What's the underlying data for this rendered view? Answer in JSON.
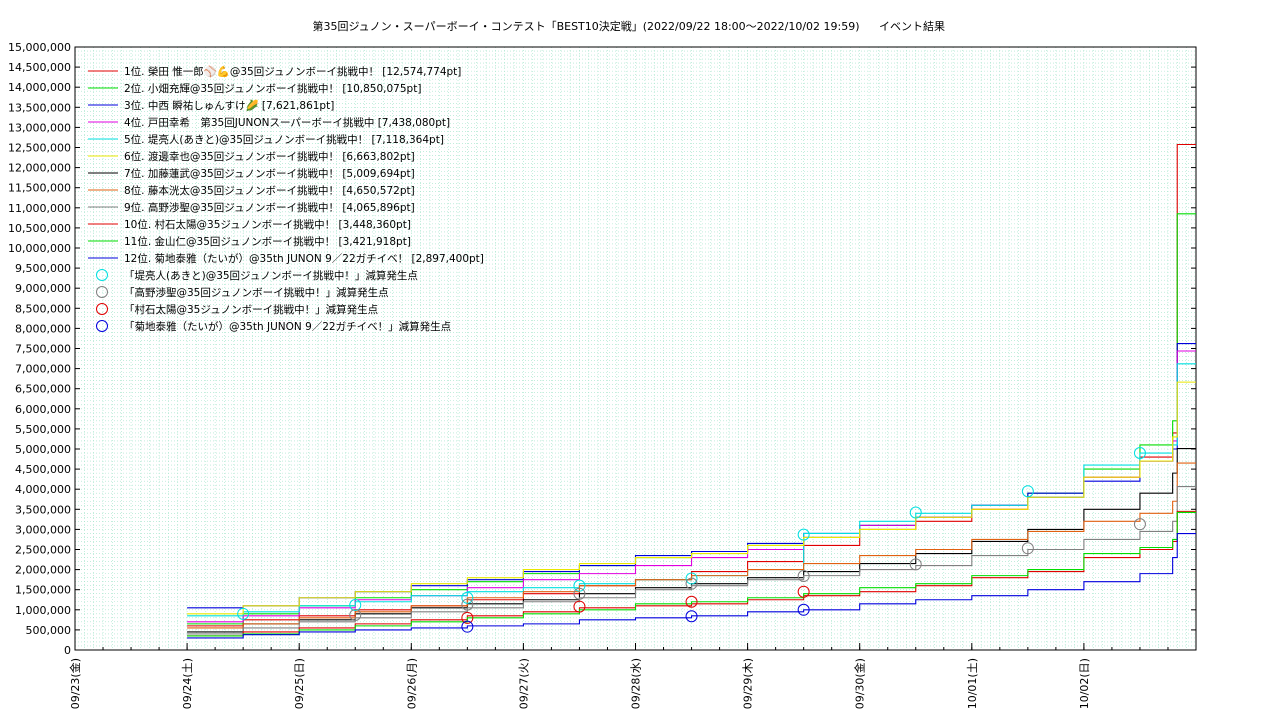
{
  "chart_data": {
    "type": "line",
    "title": "第35回ジュノン・スーパーボーイ・コンテスト「BEST10決定戦」(2022/09/22 18:00〜2022/10/02 19:59)",
    "subtitle": "イベント結果",
    "xlabel": "",
    "ylabel": "",
    "ylim": [
      0,
      15000000
    ],
    "xlim": [
      "2022-09-23",
      "2022-10-03"
    ],
    "grid": true,
    "legend_position": "top-left",
    "y_tick_labels": [
      "0",
      "500,000",
      "1,000,000",
      "1,500,000",
      "2,000,000",
      "2,500,000",
      "3,000,000",
      "3,500,000",
      "4,000,000",
      "4,500,000",
      "5,000,000",
      "5,500,000",
      "6,000,000",
      "6,500,000",
      "7,000,000",
      "7,500,000",
      "8,000,000",
      "8,500,000",
      "9,000,000",
      "9,500,000",
      "10,000,000",
      "10,500,000",
      "11,000,000",
      "11,500,000",
      "12,000,000",
      "12,500,000",
      "13,000,000",
      "13,500,000",
      "14,000,000",
      "14,500,000",
      "15,000,000"
    ],
    "x_tick_labels": [
      {
        "date": "2022-09-23",
        "label": "09/23(金)"
      },
      {
        "date": "2022-09-24",
        "label": "09/24(土)"
      },
      {
        "date": "2022-09-25",
        "label": "09/25(日)"
      },
      {
        "date": "2022-09-26",
        "label": "09/26(月)"
      },
      {
        "date": "2022-09-27",
        "label": "09/27(火)"
      },
      {
        "date": "2022-09-28",
        "label": "09/28(水)"
      },
      {
        "date": "2022-09-29",
        "label": "09/29(木)"
      },
      {
        "date": "2022-09-30",
        "label": "09/30(金)"
      },
      {
        "date": "2022-10-01",
        "label": "10/01(土)"
      },
      {
        "date": "2022-10-02",
        "label": "10/02(日)"
      }
    ],
    "x_dates": [
      "2022-09-24 00:00",
      "2022-09-24 12:00",
      "2022-09-25 00:00",
      "2022-09-25 12:00",
      "2022-09-26 00:00",
      "2022-09-26 12:00",
      "2022-09-27 00:00",
      "2022-09-27 12:00",
      "2022-09-28 00:00",
      "2022-09-28 12:00",
      "2022-09-29 00:00",
      "2022-09-29 12:00",
      "2022-09-30 00:00",
      "2022-09-30 12:00",
      "2022-10-01 00:00",
      "2022-10-01 12:00",
      "2022-10-02 00:00",
      "2022-10-02 12:00",
      "2022-10-02 19:00",
      "2022-10-02 19:59"
    ],
    "series": [
      {
        "name": "1位. 榮田 惟一郎⚾💪@35回ジュノンボーイ挑戦中！ [12,574,774pt]",
        "color": "#e00000",
        "values": [
          600000,
          750000,
          850000,
          1000000,
          1100000,
          1250000,
          1400000,
          1600000,
          1750000,
          1950000,
          2200000,
          2600000,
          3000000,
          3200000,
          3500000,
          3800000,
          4300000,
          4800000,
          5400000,
          12574774
        ]
      },
      {
        "name": "2位. 小畑充輝@35回ジュノンボーイ挑戦中！ [10,850,075pt]",
        "color": "#00dd00",
        "values": [
          650000,
          900000,
          1100000,
          1300000,
          1500000,
          1700000,
          1900000,
          2100000,
          2300000,
          2450000,
          2600000,
          2800000,
          3100000,
          3300000,
          3600000,
          3900000,
          4500000,
          5100000,
          5700000,
          10850075
        ]
      },
      {
        "name": "3位. 中西 瞬祐しゅんすけ🌽 [7,621,861pt]",
        "color": "#0000dd",
        "values": [
          1050000,
          1100000,
          1300000,
          1450000,
          1600000,
          1750000,
          1950000,
          2100000,
          2350000,
          2450000,
          2650000,
          2900000,
          3100000,
          3300000,
          3600000,
          3900000,
          4200000,
          4700000,
          5000000,
          7621861
        ]
      },
      {
        "name": "4位. 戸田幸希　第35回JUNONスーパーボーイ挑戦中 [7,438,080pt]",
        "color": "#e000e0",
        "values": [
          700000,
          850000,
          1050000,
          1250000,
          1350000,
          1550000,
          1750000,
          1900000,
          2100000,
          2300000,
          2500000,
          2800000,
          3100000,
          3300000,
          3600000,
          3800000,
          4300000,
          4700000,
          5200000,
          7438080
        ]
      },
      {
        "name": "5位. 堤亮人(あきと)@35回ジュノンボーイ挑戦中！ [7,118,364pt]",
        "color": "#00e0e0",
        "values": [
          850000,
          950000,
          1100000,
          1200000,
          1350000,
          1450000,
          1550000,
          1650000,
          1750000,
          1850000,
          2000000,
          2900000,
          3200000,
          3400000,
          3600000,
          3800000,
          4600000,
          4900000,
          5100000,
          7118364
        ]
      },
      {
        "name": "6位. 渡邊幸也@35回ジュノンボーイ挑戦中！ [6,663,802pt]",
        "color": "#e8e800",
        "values": [
          900000,
          1100000,
          1300000,
          1450000,
          1650000,
          1800000,
          2000000,
          2150000,
          2300000,
          2400000,
          2600000,
          2800000,
          3000000,
          3300000,
          3500000,
          3800000,
          4300000,
          4700000,
          5300000,
          6663802
        ]
      },
      {
        "name": "7位. 加藤蓮武@35回ジュノンボーイ挑戦中！ [5,009,694pt]",
        "color": "#000000",
        "values": [
          450000,
          650000,
          750000,
          900000,
          1050000,
          1150000,
          1250000,
          1400000,
          1550000,
          1650000,
          1800000,
          1950000,
          2150000,
          2400000,
          2700000,
          3000000,
          3500000,
          3900000,
          4400000,
          5009694
        ]
      },
      {
        "name": "8位. 藤本洸太@35回ジュノンボーイ挑戦中！ [4,650,572pt]",
        "color": "#e06010",
        "values": [
          550000,
          650000,
          800000,
          950000,
          1100000,
          1300000,
          1450000,
          1600000,
          1750000,
          1850000,
          2000000,
          2150000,
          2350000,
          2500000,
          2750000,
          2950000,
          3200000,
          3400000,
          3700000,
          4650572
        ]
      },
      {
        "name": "9位. 高野渉聖@35回ジュノンボーイ挑戦中！ [4,065,896pt]",
        "color": "#808080",
        "values": [
          400000,
          550000,
          700000,
          800000,
          950000,
          1050000,
          1200000,
          1300000,
          1500000,
          1600000,
          1750000,
          1850000,
          2000000,
          2100000,
          2350000,
          2500000,
          2750000,
          2950000,
          3200000,
          4065896
        ]
      },
      {
        "name": "10位. 村石太陽@35ジュノンボーイ挑戦中！ [3,448,360pt]",
        "color": "#e00000",
        "values": [
          350000,
          450000,
          550000,
          650000,
          750000,
          850000,
          950000,
          1050000,
          1100000,
          1150000,
          1250000,
          1350000,
          1450000,
          1600000,
          1800000,
          1950000,
          2300000,
          2500000,
          2700000,
          3448360
        ]
      },
      {
        "name": "11位. 金山仁@35回ジュノンボーイ挑戦中！ [3,421,918pt]",
        "color": "#00dd00",
        "values": [
          350000,
          400000,
          500000,
          600000,
          700000,
          800000,
          900000,
          1000000,
          1150000,
          1200000,
          1300000,
          1400000,
          1550000,
          1650000,
          1850000,
          2000000,
          2400000,
          2550000,
          2750000,
          3421918
        ]
      },
      {
        "name": "12位. 菊地泰雅（たいが）@35th JUNON 9／22ガチイベ！ [2,897,400pt]",
        "color": "#0000dd",
        "values": [
          300000,
          380000,
          450000,
          500000,
          550000,
          600000,
          650000,
          750000,
          800000,
          850000,
          950000,
          1000000,
          1150000,
          1250000,
          1350000,
          1500000,
          1700000,
          1900000,
          2300000,
          2897400
        ]
      }
    ],
    "markers": [
      {
        "name": "「堤亮人(あきと)@35回ジュノンボーイ挑戦中！」減算発生点",
        "color": "#00e0e0",
        "points": [
          [
            "2022-09-24 12:00",
            900000
          ],
          [
            "2022-09-25 12:00",
            1120000
          ],
          [
            "2022-09-26 12:00",
            1300000
          ],
          [
            "2022-09-27 12:00",
            1600000
          ],
          [
            "2022-09-28 12:00",
            1780000
          ],
          [
            "2022-09-29 12:00",
            2870000
          ],
          [
            "2022-09-30 12:00",
            3420000
          ],
          [
            "2022-10-01 12:00",
            3950000
          ],
          [
            "2022-10-02 12:00",
            4900000
          ]
        ]
      },
      {
        "name": "「高野渉聖@35回ジュノンボーイ挑戦中！」減算発生点",
        "color": "#808080",
        "points": [
          [
            "2022-09-25 12:00",
            870000
          ],
          [
            "2022-09-26 12:00",
            1130000
          ],
          [
            "2022-09-27 12:00",
            1400000
          ],
          [
            "2022-09-28 12:00",
            1650000
          ],
          [
            "2022-09-29 12:00",
            1840000
          ],
          [
            "2022-09-30 12:00",
            2130000
          ],
          [
            "2022-10-01 12:00",
            2530000
          ],
          [
            "2022-10-02 12:00",
            3130000
          ]
        ]
      },
      {
        "name": "「村石太陽@35ジュノンボーイ挑戦中！」減算発生点",
        "color": "#e00000",
        "points": [
          [
            "2022-09-26 12:00",
            800000
          ],
          [
            "2022-09-27 12:00",
            1080000
          ],
          [
            "2022-09-28 12:00",
            1200000
          ],
          [
            "2022-09-29 12:00",
            1450000
          ]
        ]
      },
      {
        "name": "「菊地泰雅（たいが）@35th JUNON 9／22ガチイベ！」減算発生点",
        "color": "#0000dd",
        "points": [
          [
            "2022-09-26 12:00",
            580000
          ],
          [
            "2022-09-28 12:00",
            840000
          ],
          [
            "2022-09-29 12:00",
            1000000
          ]
        ]
      }
    ]
  }
}
